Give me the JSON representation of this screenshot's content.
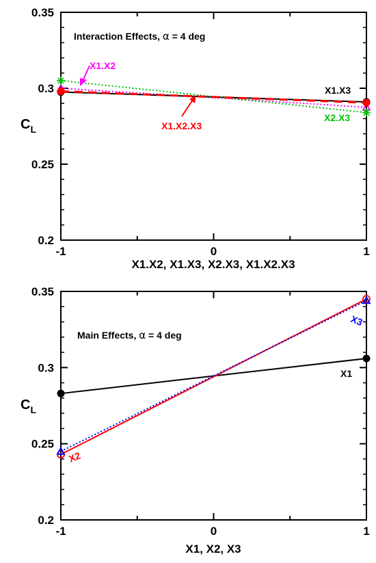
{
  "chart_data": [
    {
      "type": "line",
      "ylabel_main": "C",
      "ylabel_sub": "L",
      "xlabel": "X1.X2, X1.X3, X2.X3, X1.X2.X3",
      "xlim": [
        -1,
        1
      ],
      "ylim": [
        0.2,
        0.35
      ],
      "x_ticks": [
        "-1",
        "0",
        "1"
      ],
      "y_ticks": [
        "0.2",
        "0.25",
        "0.3",
        "0.35"
      ],
      "annotation": {
        "text_pre": "Interaction Effects, ",
        "alpha_symbol": "α",
        "text_post": " = 4 deg"
      },
      "grid": false,
      "series": [
        {
          "name": "X1.X2",
          "color": "#ff00ff",
          "dash": "dot",
          "marker": "triangle",
          "x": [
            -1,
            1
          ],
          "y": [
            0.3,
            0.2875
          ]
        },
        {
          "name": "X1.X3",
          "color": "#000000",
          "dash": "solid",
          "marker": "circle-filled",
          "x": [
            -1,
            1
          ],
          "y": [
            0.2975,
            0.291
          ]
        },
        {
          "name": "X2.X3",
          "color": "#00c000",
          "dash": "dot",
          "marker": "star",
          "x": [
            -1,
            1
          ],
          "y": [
            0.305,
            0.284
          ]
        },
        {
          "name": "X1.X2.X3",
          "color": "#ff0000",
          "dash": "dash",
          "marker": "circle-filled",
          "x": [
            -1,
            1
          ],
          "y": [
            0.298,
            0.2905
          ]
        }
      ]
    },
    {
      "type": "line",
      "ylabel_main": "C",
      "ylabel_sub": "L",
      "xlabel": "X1, X2, X3",
      "xlim": [
        -1,
        1
      ],
      "ylim": [
        0.2,
        0.35
      ],
      "x_ticks": [
        "-1",
        "0",
        "1"
      ],
      "y_ticks": [
        "0.2",
        "0.25",
        "0.3",
        "0.35"
      ],
      "annotation": {
        "text_pre": "Main Effects, ",
        "alpha_symbol": "α",
        "text_post": " = 4 deg"
      },
      "grid": false,
      "series": [
        {
          "name": "X1",
          "color": "#000000",
          "dash": "solid",
          "marker": "circle-filled",
          "x": [
            -1,
            1
          ],
          "y": [
            0.283,
            0.306
          ]
        },
        {
          "name": "X2",
          "color": "#ff0000",
          "dash": "solid",
          "marker": "circle-open",
          "x": [
            -1,
            1
          ],
          "y": [
            0.243,
            0.345
          ]
        },
        {
          "name": "X3",
          "color": "#0000ff",
          "dash": "dot",
          "marker": "triangle",
          "x": [
            -1,
            1
          ],
          "y": [
            0.245,
            0.344
          ]
        }
      ]
    }
  ]
}
